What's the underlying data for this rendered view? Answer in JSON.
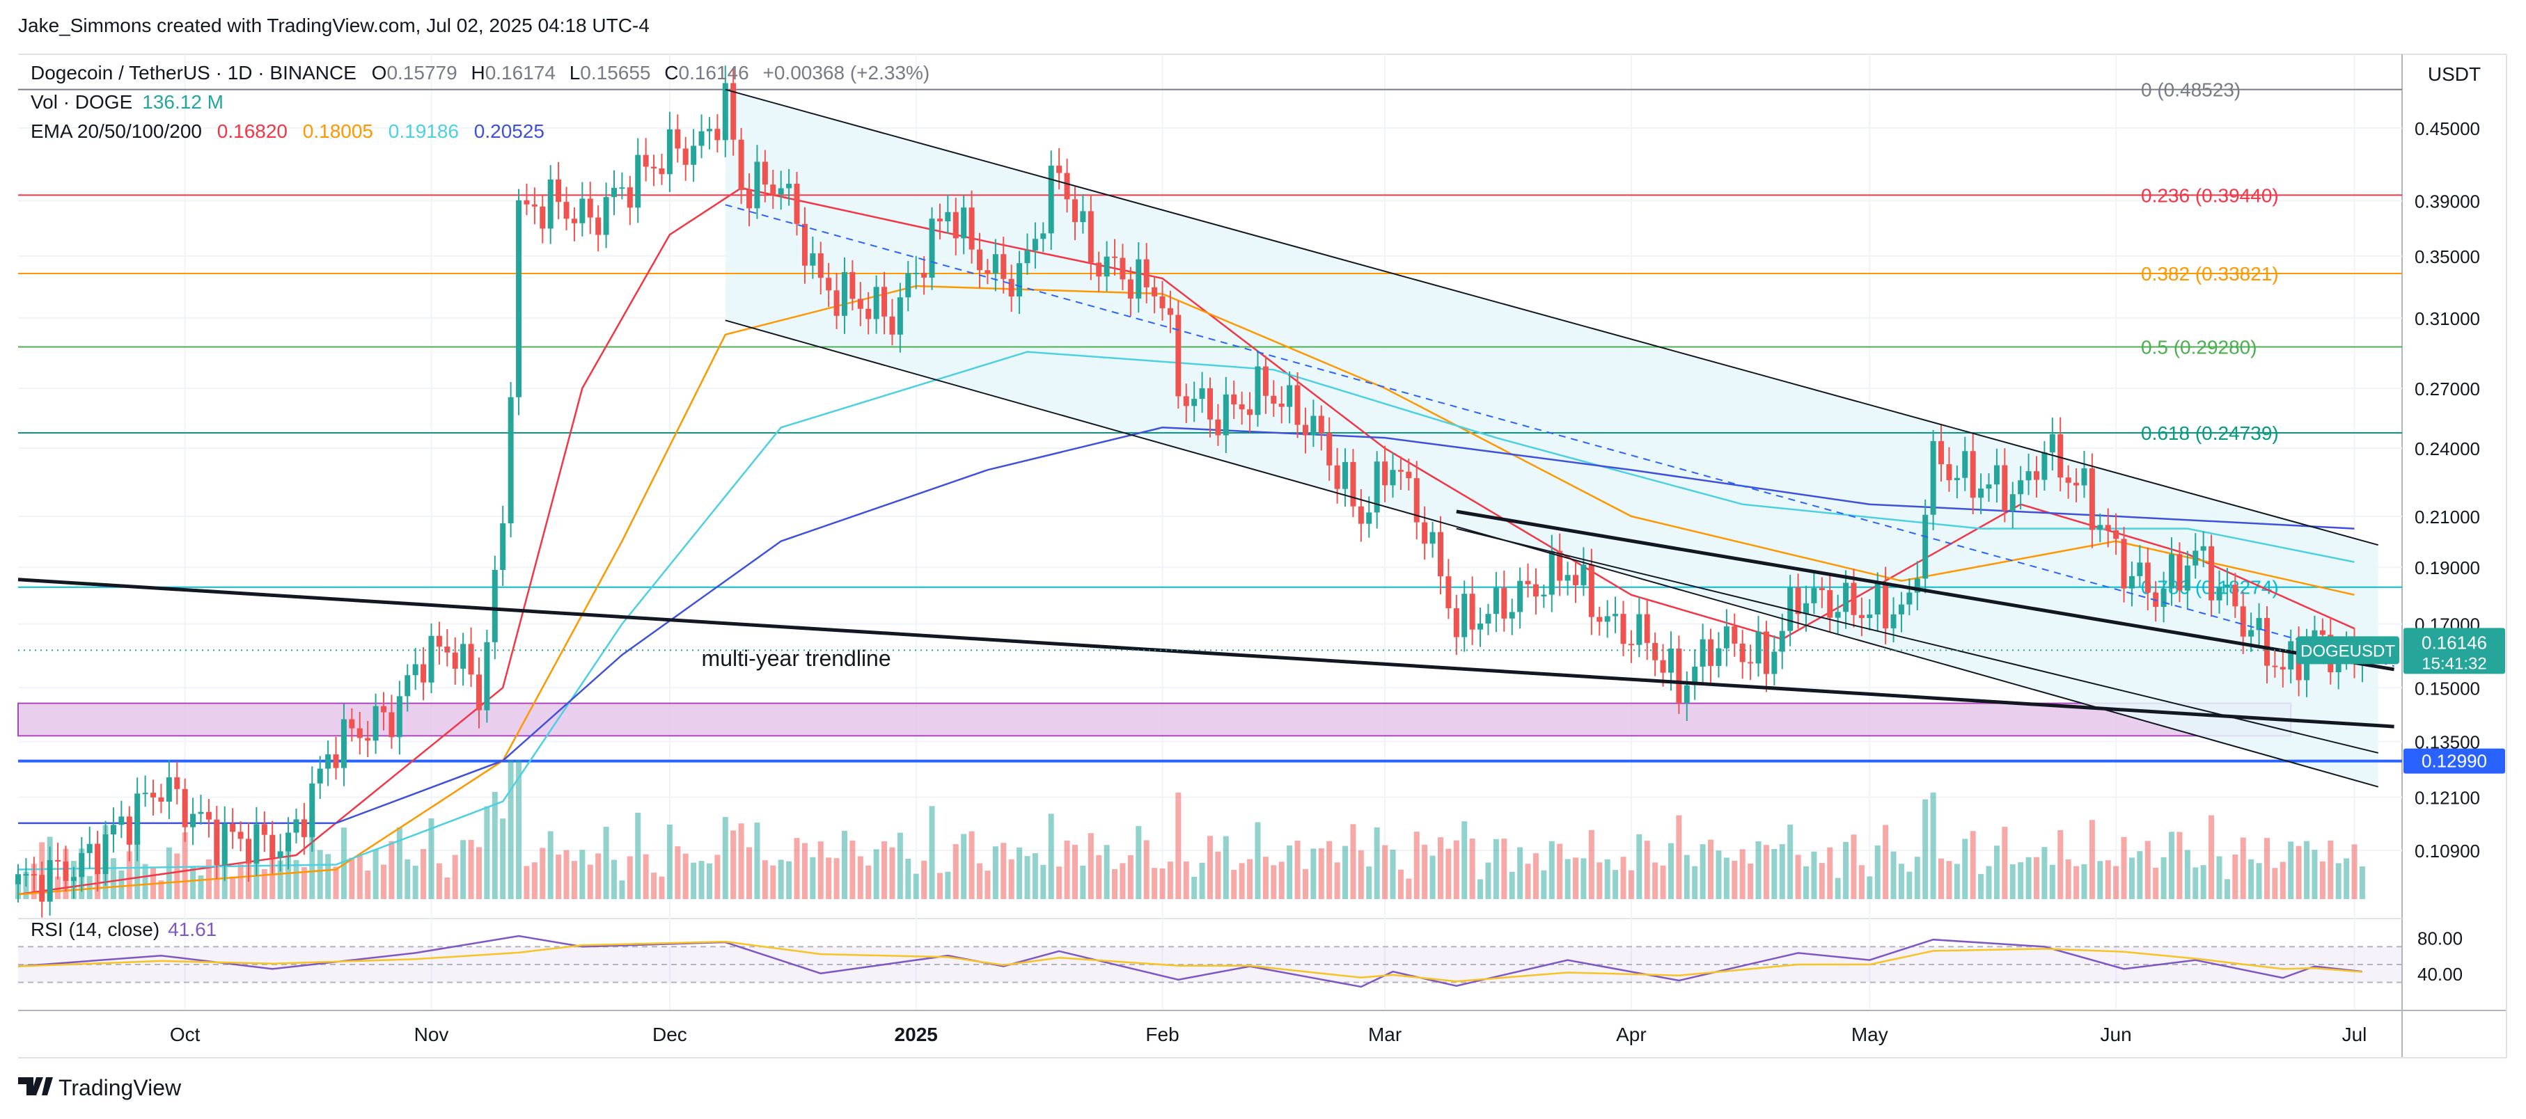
{
  "header": {
    "attribution": "Jake_Simmons created with TradingView.com, Jul 02, 2025 04:18 UTC-4"
  },
  "legend": {
    "symbol": "Dogecoin / TetherUS · 1D · BINANCE",
    "o_label": "O",
    "o_value": "0.15779",
    "h_label": "H",
    "h_value": "0.16174",
    "l_label": "L",
    "l_value": "0.15655",
    "c_label": "C",
    "c_value": "0.16146",
    "change": "+0.00368 (+2.33%)",
    "vol_label": "Vol · DOGE",
    "vol_value": "136.12 M",
    "ema_label": "EMA 20/50/100/200",
    "ema20": "0.16820",
    "ema50": "0.18005",
    "ema100": "0.19186",
    "ema200": "0.20525"
  },
  "footer": {
    "brand": "TradingView"
  },
  "colors": {
    "up": "#26a69a",
    "down": "#ef5350",
    "ema20": "#f23645",
    "ema50": "#ff9800",
    "ema100": "#4dd0e1",
    "ema200": "#3f51d8",
    "fib_zero": "#787b86",
    "fib_236": "#f23645",
    "fib_382": "#ff9800",
    "fib_5": "#4caf50",
    "fib_618": "#089981",
    "fib_786": "#00bcd4",
    "support": "#2962ff",
    "rsi": "#7e57c2",
    "rsi_ma": "#f7c325",
    "channel_fill": "#e6f7fa",
    "zone": "#e1bee7"
  },
  "chart_data": {
    "type": "candlestick",
    "symbol": "DOGEUSDT",
    "interval": "1D",
    "price_axis_currency": "USDT",
    "y_scale": "log",
    "ylim": [
      0.098,
      0.52
    ],
    "y_ticks": [
      "0.45000",
      "0.39000",
      "0.35000",
      "0.31000",
      "0.27000",
      "0.24000",
      "0.21000",
      "0.19000",
      "0.17000",
      "0.15000",
      "0.13500",
      "0.12100",
      "0.10900"
    ],
    "x_ticks": [
      {
        "date": "2024-10-01",
        "label": "Oct"
      },
      {
        "date": "2024-11-01",
        "label": "Nov"
      },
      {
        "date": "2024-12-01",
        "label": "Dec"
      },
      {
        "date": "2025-01-01",
        "label": "2025"
      },
      {
        "date": "2025-02-01",
        "label": "Feb"
      },
      {
        "date": "2025-03-01",
        "label": "Mar"
      },
      {
        "date": "2025-04-01",
        "label": "Apr"
      },
      {
        "date": "2025-05-01",
        "label": "May"
      },
      {
        "date": "2025-06-01",
        "label": "Jun"
      },
      {
        "date": "2025-07-01",
        "label": "Jul"
      }
    ],
    "last_price": {
      "symbol": "DOGEUSDT",
      "value": "0.16146",
      "countdown": "15:41:32"
    },
    "fib_levels": [
      {
        "level": "0",
        "value": 0.48523,
        "label": "0 (0.48523)",
        "color": "#787b86"
      },
      {
        "level": "0.236",
        "value": 0.3944,
        "label": "0.236 (0.39440)",
        "color": "#f23645"
      },
      {
        "level": "0.382",
        "value": 0.33821,
        "label": "0.382 (0.33821)",
        "color": "#ff9800"
      },
      {
        "level": "0.5",
        "value": 0.2928,
        "label": "0.5 (0.29280)",
        "color": "#4caf50"
      },
      {
        "level": "0.618",
        "value": 0.24739,
        "label": "0.618 (0.24739)",
        "color": "#089981"
      },
      {
        "level": "0.786",
        "value": 0.18274,
        "label": "0.786 (0.18274)",
        "color": "#00bcd4"
      }
    ],
    "support_line": {
      "value": 0.1299,
      "label": "0.12990"
    },
    "support_zone": [
      0.1365,
      0.1455
    ],
    "annotations": [
      {
        "text": "multi-year trendline"
      }
    ],
    "trendlines": {
      "multi_year": [
        {
          "date": "2024-09-10",
          "value": 0.1855
        },
        {
          "date": "2025-07-06",
          "value": 0.139
        }
      ],
      "channel_upper": [
        {
          "date": "2024-12-08",
          "value": 0.4852
        },
        {
          "date": "2025-07-04",
          "value": 0.1985
        }
      ],
      "channel_lower": [
        {
          "date": "2024-12-08",
          "value": 0.3085
        },
        {
          "date": "2025-07-04",
          "value": 0.1235
        }
      ],
      "channel_mid": [
        {
          "date": "2024-12-08",
          "value": 0.387
        },
        {
          "date": "2025-07-06",
          "value": 0.1565
        }
      ],
      "inner_upper": [
        {
          "date": "2025-03-10",
          "value": 0.212
        },
        {
          "date": "2025-07-06",
          "value": 0.1555
        }
      ],
      "inner_lower": [
        {
          "date": "2025-03-10",
          "value": 0.205
        },
        {
          "date": "2025-07-04",
          "value": 0.132
        }
      ]
    },
    "price_path": [
      [
        "2024-09-10",
        0.102
      ],
      [
        "2024-09-18",
        0.106
      ],
      [
        "2024-09-28",
        0.124
      ],
      [
        "2024-10-05",
        0.112
      ],
      [
        "2024-10-14",
        0.11
      ],
      [
        "2024-10-20",
        0.135
      ],
      [
        "2024-10-27",
        0.142
      ],
      [
        "2024-10-31",
        0.16
      ],
      [
        "2024-11-04",
        0.162
      ],
      [
        "2024-11-07",
        0.148
      ],
      [
        "2024-11-10",
        0.205
      ],
      [
        "2024-11-12",
        0.38
      ],
      [
        "2024-11-16",
        0.39
      ],
      [
        "2024-11-21",
        0.375
      ],
      [
        "2024-11-26",
        0.405
      ],
      [
        "2024-12-01",
        0.43
      ],
      [
        "2024-12-05",
        0.435
      ],
      [
        "2024-12-08",
        0.475
      ],
      [
        "2024-12-10",
        0.4
      ],
      [
        "2024-12-15",
        0.405
      ],
      [
        "2024-12-20",
        0.33
      ],
      [
        "2024-12-25",
        0.32
      ],
      [
        "2024-12-29",
        0.31
      ],
      [
        "2025-01-05",
        0.385
      ],
      [
        "2025-01-10",
        0.34
      ],
      [
        "2025-01-14",
        0.335
      ],
      [
        "2025-01-19",
        0.415
      ],
      [
        "2025-01-23",
        0.35
      ],
      [
        "2025-01-28",
        0.335
      ],
      [
        "2025-02-01",
        0.325
      ],
      [
        "2025-02-03",
        0.27
      ],
      [
        "2025-02-08",
        0.255
      ],
      [
        "2025-02-14",
        0.27
      ],
      [
        "2025-02-20",
        0.25
      ],
      [
        "2025-02-26",
        0.21
      ],
      [
        "2025-03-02",
        0.235
      ],
      [
        "2025-03-06",
        0.205
      ],
      [
        "2025-03-10",
        0.17
      ],
      [
        "2025-03-15",
        0.175
      ],
      [
        "2025-03-24",
        0.19
      ],
      [
        "2025-03-29",
        0.17
      ],
      [
        "2025-04-03",
        0.165
      ],
      [
        "2025-04-07",
        0.15
      ],
      [
        "2025-04-12",
        0.165
      ],
      [
        "2025-04-18",
        0.158
      ],
      [
        "2025-04-22",
        0.18
      ],
      [
        "2025-04-30",
        0.175
      ],
      [
        "2025-05-06",
        0.175
      ],
      [
        "2025-05-09",
        0.235
      ],
      [
        "2025-05-14",
        0.225
      ],
      [
        "2025-05-20",
        0.22
      ],
      [
        "2025-05-23",
        0.24
      ],
      [
        "2025-05-28",
        0.22
      ],
      [
        "2025-06-02",
        0.19
      ],
      [
        "2025-06-06",
        0.18
      ],
      [
        "2025-06-11",
        0.195
      ],
      [
        "2025-06-16",
        0.175
      ],
      [
        "2025-06-22",
        0.155
      ],
      [
        "2025-06-26",
        0.165
      ],
      [
        "2025-06-30",
        0.158
      ],
      [
        "2025-07-02",
        0.1615
      ]
    ],
    "ema_series": [
      {
        "name": "EMA 20",
        "points": [
          [
            "2024-09-10",
            0.1
          ],
          [
            "2024-10-15",
            0.108
          ],
          [
            "2024-11-10",
            0.15
          ],
          [
            "2024-11-20",
            0.27
          ],
          [
            "2024-12-01",
            0.365
          ],
          [
            "2024-12-10",
            0.4
          ],
          [
            "2025-01-10",
            0.36
          ],
          [
            "2025-02-01",
            0.335
          ],
          [
            "2025-03-01",
            0.24
          ],
          [
            "2025-04-01",
            0.18
          ],
          [
            "2025-04-20",
            0.165
          ],
          [
            "2025-05-20",
            0.215
          ],
          [
            "2025-06-10",
            0.195
          ],
          [
            "2025-07-01",
            0.1685
          ]
        ]
      },
      {
        "name": "EMA 50",
        "points": [
          [
            "2024-09-10",
            0.1
          ],
          [
            "2024-10-20",
            0.105
          ],
          [
            "2024-11-10",
            0.13
          ],
          [
            "2024-11-25",
            0.2
          ],
          [
            "2024-12-08",
            0.3
          ],
          [
            "2025-01-01",
            0.33
          ],
          [
            "2025-02-01",
            0.325
          ],
          [
            "2025-03-01",
            0.27
          ],
          [
            "2025-04-01",
            0.21
          ],
          [
            "2025-05-05",
            0.185
          ],
          [
            "2025-06-01",
            0.2
          ],
          [
            "2025-07-01",
            0.18
          ]
        ]
      },
      {
        "name": "EMA 100",
        "points": [
          [
            "2024-09-10",
            0.105
          ],
          [
            "2024-10-20",
            0.106
          ],
          [
            "2024-11-10",
            0.12
          ],
          [
            "2024-11-25",
            0.17
          ],
          [
            "2024-12-15",
            0.25
          ],
          [
            "2025-01-15",
            0.29
          ],
          [
            "2025-02-15",
            0.28
          ],
          [
            "2025-03-15",
            0.245
          ],
          [
            "2025-04-15",
            0.215
          ],
          [
            "2025-05-15",
            0.205
          ],
          [
            "2025-06-10",
            0.205
          ],
          [
            "2025-07-01",
            0.192
          ]
        ]
      },
      {
        "name": "EMA 200",
        "points": [
          [
            "2024-09-10",
            0.115
          ],
          [
            "2024-10-20",
            0.115
          ],
          [
            "2024-11-10",
            0.13
          ],
          [
            "2024-11-25",
            0.16
          ],
          [
            "2024-12-15",
            0.2
          ],
          [
            "2025-01-10",
            0.23
          ],
          [
            "2025-02-01",
            0.25
          ],
          [
            "2025-03-01",
            0.245
          ],
          [
            "2025-04-01",
            0.23
          ],
          [
            "2025-05-01",
            0.215
          ],
          [
            "2025-06-01",
            0.21
          ],
          [
            "2025-07-01",
            0.205
          ]
        ]
      }
    ],
    "rsi": {
      "label": "RSI (14, close)",
      "value": "41.61",
      "ylim": [
        0,
        100
      ],
      "levels": [
        30,
        50,
        70
      ],
      "ticks": [
        "80.00",
        "40.00"
      ],
      "path": [
        [
          "2024-09-10",
          48
        ],
        [
          "2024-09-28",
          60
        ],
        [
          "2024-10-12",
          45
        ],
        [
          "2024-10-30",
          63
        ],
        [
          "2024-11-12",
          82
        ],
        [
          "2024-11-20",
          70
        ],
        [
          "2024-12-08",
          75
        ],
        [
          "2024-12-20",
          40
        ],
        [
          "2025-01-05",
          60
        ],
        [
          "2025-01-12",
          48
        ],
        [
          "2025-01-19",
          65
        ],
        [
          "2025-02-03",
          33
        ],
        [
          "2025-02-12",
          48
        ],
        [
          "2025-02-26",
          25
        ],
        [
          "2025-03-02",
          42
        ],
        [
          "2025-03-10",
          26
        ],
        [
          "2025-03-24",
          55
        ],
        [
          "2025-04-07",
          32
        ],
        [
          "2025-04-22",
          63
        ],
        [
          "2025-05-01",
          55
        ],
        [
          "2025-05-09",
          78
        ],
        [
          "2025-05-23",
          70
        ],
        [
          "2025-06-02",
          45
        ],
        [
          "2025-06-11",
          55
        ],
        [
          "2025-06-22",
          35
        ],
        [
          "2025-06-26",
          48
        ],
        [
          "2025-07-02",
          42
        ]
      ]
    }
  }
}
